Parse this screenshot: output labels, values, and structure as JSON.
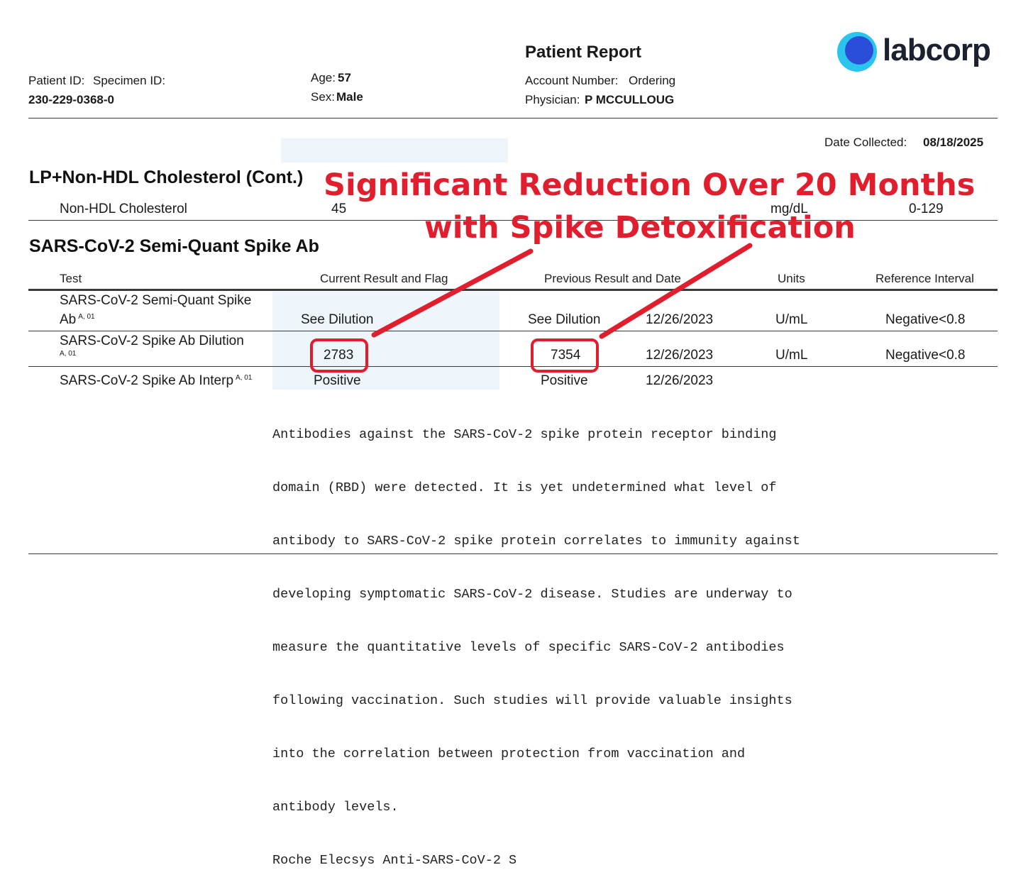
{
  "header": {
    "patient_id_label": "Patient ID:",
    "specimen_id_label": "Specimen ID:",
    "specimen_id_value": "230-229-0368-0",
    "age_label": "Age:",
    "age_value": "57",
    "sex_label": "Sex:",
    "sex_value": "Male",
    "report_title": "Patient Report",
    "account_number_label": "Account Number:",
    "ordering_label": "Ordering",
    "physician_label": "Physician:",
    "physician_value": "P MCCULLOUG",
    "logo_text": "labcorp",
    "date_collected_label": "Date Collected:",
    "date_collected_value": "08/18/2025"
  },
  "section1": {
    "title": "LP+Non-HDL Cholesterol (Cont.)",
    "row": {
      "test": "Non-HDL Cholesterol",
      "current": "45",
      "units": "mg/dL",
      "reference": "0-129"
    }
  },
  "section2": {
    "title": "SARS-CoV-2 Semi-Quant Spike Ab",
    "columns": {
      "test": "Test",
      "current": "Current Result and Flag",
      "previous": "Previous Result and Date",
      "units": "Units",
      "reference": "Reference Interval"
    },
    "rows": [
      {
        "test_line1": "SARS-CoV-2 Semi-Quant Spike",
        "test_line2": "Ab",
        "sup": "A, 01",
        "current": "See Dilution",
        "previous": "See Dilution",
        "previous_date": "12/26/2023",
        "units": "U/mL",
        "reference": "Negative<0.8"
      },
      {
        "test_line1": "SARS-CoV-2 Spike Ab Dilution",
        "sup": "A, 01",
        "current": "2783",
        "previous": "7354",
        "previous_date": "12/26/2023",
        "units": "U/mL",
        "reference": "Negative<0.8"
      },
      {
        "test_line1": "SARS-CoV-2 Spike Ab Interp",
        "sup": "A, 01",
        "current": "Positive",
        "previous": "Positive",
        "previous_date": "12/26/2023"
      }
    ],
    "comment_lines": [
      "Antibodies against the SARS-CoV-2 spike protein receptor binding",
      "domain (RBD) were detected. It is yet undetermined what level of",
      "antibody to SARS-CoV-2 spike protein correlates to immunity against",
      "developing symptomatic SARS-CoV-2 disease. Studies are underway to",
      "measure the quantitative levels of specific SARS-CoV-2 antibodies",
      "following vaccination. Such studies will provide valuable insights",
      "into the correlation between protection from vaccination and",
      "antibody levels.",
      "Roche Elecsys Anti-SARS-CoV-2 S"
    ]
  },
  "annotation": {
    "line1": "Significant Reduction Over 20 Months",
    "line2": "with Spike Detoxification",
    "color": "#e01e2d"
  },
  "colors": {
    "logo_outer": "#2bc4ef",
    "logo_inner": "#2a4ed8",
    "highlight_shade": "#eef6fb"
  }
}
